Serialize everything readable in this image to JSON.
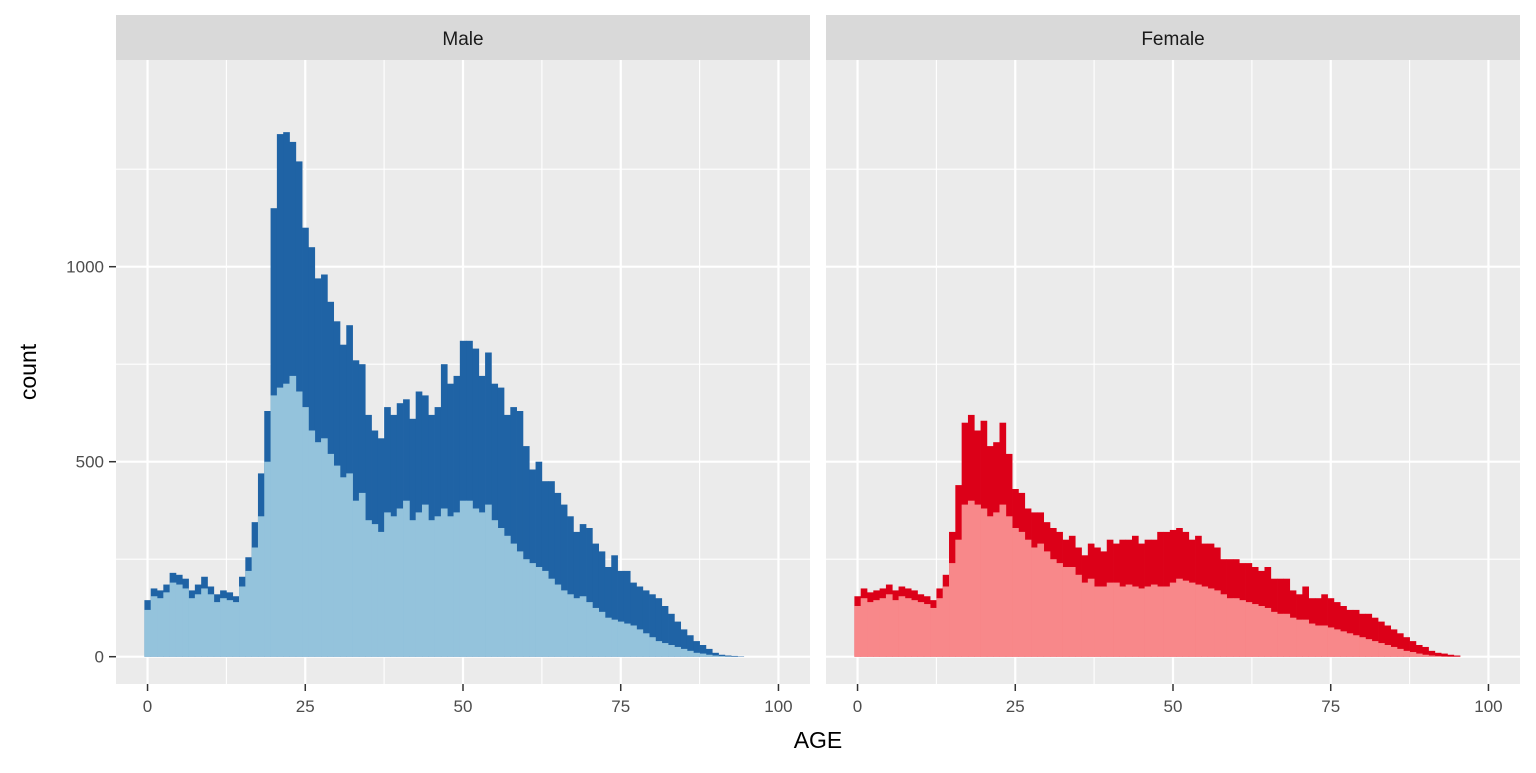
{
  "chart_data": {
    "type": "bar",
    "xlabel": "AGE",
    "ylabel": "count",
    "xlim": [
      -5,
      105
    ],
    "ylim": [
      -70,
      1530
    ],
    "x_ticks": [
      "0",
      "25",
      "50",
      "75",
      "100"
    ],
    "y_ticks": [
      "0",
      "500",
      "1000"
    ],
    "x_tick_values": [
      0,
      25,
      50,
      75,
      100
    ],
    "y_tick_values": [
      0,
      500,
      1000
    ],
    "bin_width": 1,
    "bin_start": -0.5,
    "grid": true,
    "panels": [
      {
        "label": "Male",
        "series": [
          {
            "role": "total",
            "color": "#1f63a5",
            "values": [
              145,
              175,
              170,
              185,
              215,
              210,
              200,
              170,
              185,
              205,
              180,
              160,
              170,
              165,
              155,
              205,
              255,
              345,
              470,
              630,
              1150,
              1340,
              1345,
              1320,
              1270,
              1100,
              1050,
              970,
              980,
              910,
              860,
              800,
              850,
              760,
              750,
              620,
              580,
              560,
              640,
              620,
              650,
              660,
              610,
              680,
              670,
              620,
              640,
              750,
              700,
              720,
              810,
              810,
              790,
              720,
              780,
              700,
              690,
              620,
              640,
              630,
              540,
              480,
              500,
              450,
              450,
              420,
              390,
              360,
              320,
              340,
              330,
              290,
              270,
              230,
              260,
              220,
              220,
              190,
              180,
              170,
              160,
              150,
              130,
              110,
              90,
              70,
              55,
              40,
              30,
              20,
              10,
              5,
              3,
              2,
              1,
              0,
              0,
              0,
              0,
              0
            ]
          },
          {
            "role": "inner",
            "color": "#94c3dc",
            "values": [
              120,
              155,
              150,
              165,
              190,
              185,
              175,
              150,
              160,
              175,
              160,
              140,
              150,
              145,
              140,
              180,
              220,
              280,
              360,
              500,
              670,
              690,
              700,
              720,
              680,
              640,
              580,
              550,
              560,
              520,
              490,
              460,
              470,
              400,
              420,
              350,
              340,
              320,
              370,
              360,
              380,
              400,
              350,
              370,
              390,
              350,
              360,
              380,
              360,
              370,
              400,
              400,
              380,
              370,
              390,
              350,
              330,
              310,
              290,
              270,
              250,
              240,
              230,
              220,
              200,
              185,
              170,
              160,
              150,
              155,
              140,
              125,
              115,
              100,
              95,
              90,
              85,
              80,
              70,
              60,
              50,
              40,
              35,
              30,
              25,
              20,
              15,
              10,
              8,
              5,
              3,
              2,
              1,
              0,
              0,
              0,
              0,
              0,
              0,
              0
            ]
          }
        ]
      },
      {
        "label": "Female",
        "series": [
          {
            "role": "total",
            "color": "#dc0018",
            "values": [
              155,
              175,
              165,
              170,
              175,
              185,
              170,
              180,
              175,
              170,
              160,
              155,
              145,
              175,
              210,
              320,
              440,
              600,
              620,
              580,
              605,
              540,
              550,
              600,
              520,
              430,
              420,
              380,
              370,
              370,
              345,
              330,
              320,
              300,
              310,
              280,
              260,
              290,
              280,
              270,
              300,
              290,
              300,
              300,
              310,
              290,
              300,
              300,
              320,
              320,
              325,
              330,
              320,
              300,
              310,
              290,
              290,
              280,
              250,
              250,
              250,
              240,
              240,
              230,
              220,
              230,
              200,
              200,
              200,
              170,
              160,
              180,
              150,
              150,
              160,
              150,
              140,
              130,
              120,
              120,
              110,
              110,
              100,
              90,
              80,
              70,
              60,
              50,
              40,
              30,
              25,
              15,
              10,
              8,
              5,
              3,
              0,
              0,
              0,
              0
            ]
          },
          {
            "role": "inner",
            "color": "#f8888a",
            "values": [
              130,
              150,
              140,
              145,
              150,
              160,
              145,
              155,
              150,
              145,
              140,
              135,
              125,
              150,
              180,
              240,
              300,
              390,
              400,
              390,
              380,
              360,
              370,
              390,
              360,
              330,
              320,
              300,
              280,
              290,
              270,
              250,
              240,
              230,
              230,
              210,
              190,
              200,
              180,
              180,
              190,
              190,
              180,
              185,
              180,
              175,
              180,
              185,
              180,
              180,
              190,
              200,
              195,
              190,
              185,
              180,
              175,
              170,
              160,
              150,
              150,
              145,
              140,
              135,
              130,
              125,
              115,
              110,
              110,
              100,
              95,
              95,
              85,
              80,
              80,
              75,
              70,
              65,
              60,
              55,
              50,
              45,
              40,
              35,
              30,
              25,
              20,
              15,
              12,
              8,
              5,
              3,
              2,
              1,
              0,
              0,
              0,
              0,
              0,
              0
            ]
          }
        ]
      }
    ]
  }
}
